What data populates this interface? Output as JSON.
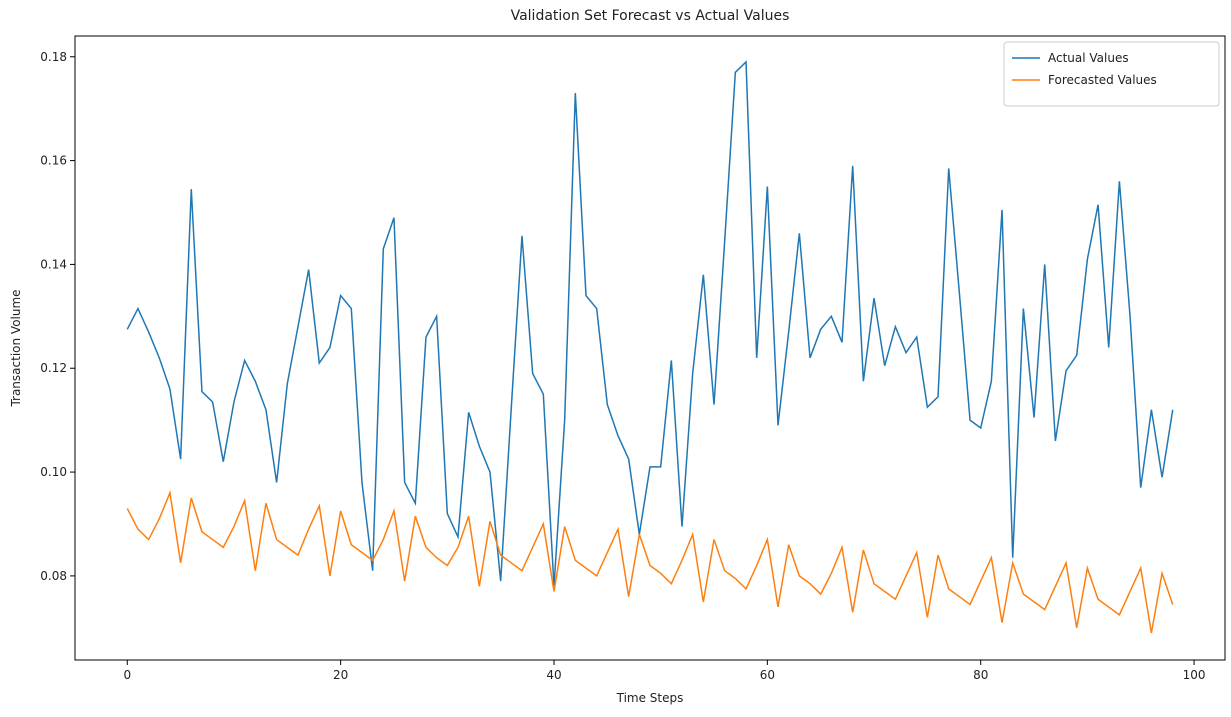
{
  "chart_data": {
    "type": "line",
    "title": "Validation Set Forecast vs Actual Values",
    "xlabel": "Time Steps",
    "ylabel": "Transaction Volume",
    "x": [
      0,
      1,
      2,
      3,
      4,
      5,
      6,
      7,
      8,
      9,
      10,
      11,
      12,
      13,
      14,
      15,
      16,
      17,
      18,
      19,
      20,
      21,
      22,
      23,
      24,
      25,
      26,
      27,
      28,
      29,
      30,
      31,
      32,
      33,
      34,
      35,
      36,
      37,
      38,
      39,
      40,
      41,
      42,
      43,
      44,
      45,
      46,
      47,
      48,
      49,
      50,
      51,
      52,
      53,
      54,
      55,
      56,
      57,
      58,
      59,
      60,
      61,
      62,
      63,
      64,
      65,
      66,
      67,
      68,
      69,
      70,
      71,
      72,
      73,
      74,
      75,
      76,
      77,
      78,
      79,
      80,
      81,
      82,
      83,
      84,
      85,
      86,
      87,
      88,
      89,
      90,
      91,
      92,
      93,
      94,
      95,
      96,
      97,
      98
    ],
    "series": [
      {
        "name": "Actual Values",
        "color": "#1f77b4",
        "values": [
          0.1275,
          0.1315,
          0.127,
          0.122,
          0.116,
          0.1025,
          0.1545,
          0.1155,
          0.1135,
          0.102,
          0.1135,
          0.1215,
          0.1175,
          0.112,
          0.098,
          0.117,
          0.128,
          0.139,
          0.121,
          0.124,
          0.134,
          0.1315,
          0.098,
          0.081,
          0.143,
          0.149,
          0.098,
          0.094,
          0.126,
          0.13,
          0.092,
          0.0875,
          0.1115,
          0.105,
          0.1,
          0.079,
          0.1125,
          0.1455,
          0.119,
          0.115,
          0.078,
          0.11,
          0.173,
          0.134,
          0.1315,
          0.113,
          0.107,
          0.1025,
          0.088,
          0.101,
          0.101,
          0.1215,
          0.0895,
          0.119,
          0.138,
          0.113,
          0.1445,
          0.177,
          0.179,
          0.122,
          0.155,
          0.109,
          0.127,
          0.146,
          0.122,
          0.1275,
          0.13,
          0.125,
          0.159,
          0.1175,
          0.1335,
          0.1205,
          0.128,
          0.123,
          0.126,
          0.1125,
          0.1145,
          0.1585,
          0.1345,
          0.11,
          0.1085,
          0.1175,
          0.1505,
          0.0835,
          0.1315,
          0.1105,
          0.14,
          0.106,
          0.1195,
          0.1225,
          0.141,
          0.1515,
          0.124,
          0.156,
          0.13,
          0.097,
          0.112,
          0.099,
          0.112
        ]
      },
      {
        "name": "Forecasted Values",
        "color": "#ff7f0e",
        "values": [
          0.093,
          0.089,
          0.087,
          0.091,
          0.096,
          0.0825,
          0.095,
          0.0885,
          0.087,
          0.0855,
          0.0895,
          0.0945,
          0.081,
          0.094,
          0.087,
          0.0855,
          0.084,
          0.089,
          0.0935,
          0.08,
          0.0925,
          0.086,
          0.0845,
          0.083,
          0.087,
          0.0925,
          0.079,
          0.0915,
          0.0855,
          0.0835,
          0.082,
          0.0855,
          0.0915,
          0.078,
          0.0905,
          0.084,
          0.0825,
          0.081,
          0.0855,
          0.09,
          0.077,
          0.0895,
          0.083,
          0.0815,
          0.08,
          0.0845,
          0.089,
          0.076,
          0.088,
          0.082,
          0.0805,
          0.0785,
          0.083,
          0.088,
          0.075,
          0.087,
          0.081,
          0.0795,
          0.0775,
          0.082,
          0.087,
          0.074,
          0.086,
          0.08,
          0.0785,
          0.0765,
          0.0805,
          0.0855,
          0.073,
          0.085,
          0.0785,
          0.077,
          0.0755,
          0.08,
          0.0845,
          0.072,
          0.084,
          0.0775,
          0.076,
          0.0745,
          0.079,
          0.0835,
          0.071,
          0.0825,
          0.0765,
          0.075,
          0.0735,
          0.078,
          0.0825,
          0.07,
          0.0815,
          0.0755,
          0.074,
          0.0725,
          0.077,
          0.0815,
          0.069,
          0.0805,
          0.0745
        ]
      }
    ],
    "xlim": [
      -4.9,
      102.9
    ],
    "ylim": [
      0.0638,
      0.184
    ],
    "xticks": [
      0,
      20,
      40,
      60,
      80,
      100
    ],
    "yticks": [
      0.08,
      {
        "value": 0.1,
        "label": "0.10"
      },
      0.12,
      0.14,
      0.16,
      0.18
    ],
    "legend": "upper right"
  }
}
